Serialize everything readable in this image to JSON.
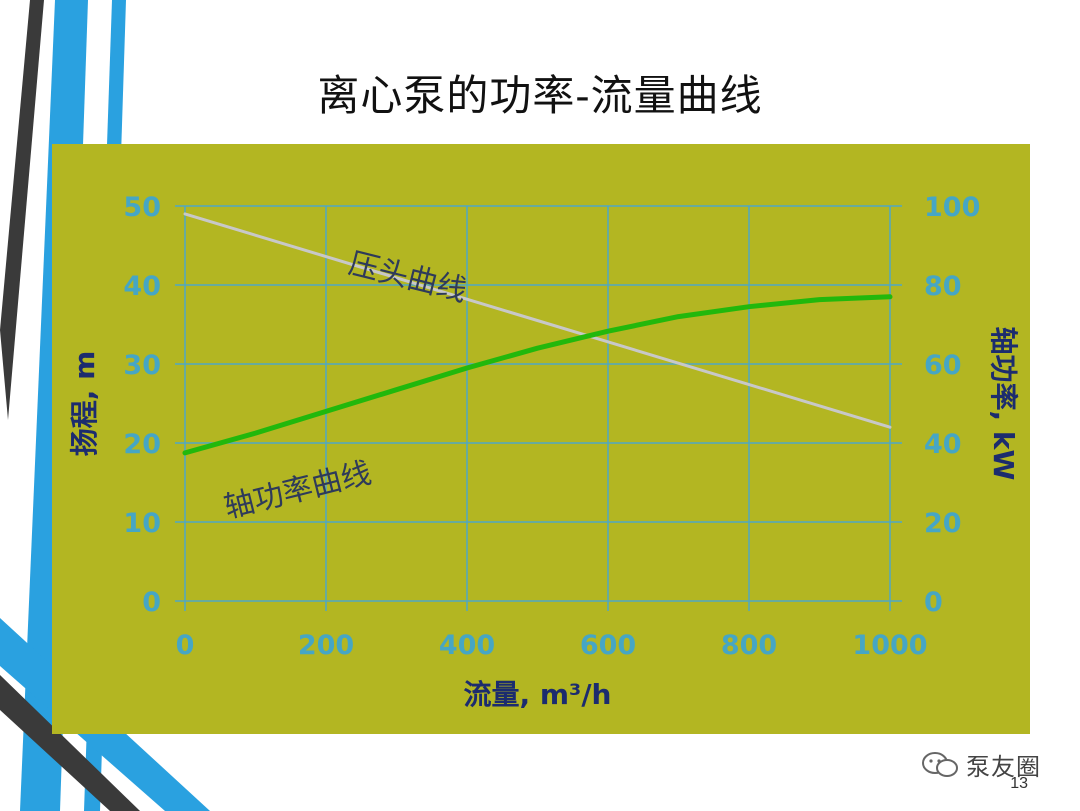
{
  "slide": {
    "title": "离心泵的功率-流量曲线",
    "page_number": "13",
    "watermark": "泵友圈"
  },
  "colors": {
    "panel": "#b3b622",
    "grid": "#4fa7c4",
    "tick_labels": "#46a6c4",
    "axis_titles": "#1c2c6e",
    "head_curve": "#c8c8c8",
    "power_curve": "#22b80c",
    "deco_blue": "#2aa1e0",
    "deco_dark": "#3a3a3a"
  },
  "chart_data": {
    "type": "line",
    "x_label": "流量, m³/h",
    "y_left_label": "扬程, m",
    "y_right_label": "轴功率, kW",
    "xlim": [
      0,
      1000
    ],
    "ylim_left": [
      0,
      50
    ],
    "ylim_right": [
      0,
      100
    ],
    "x_ticks": [
      "0",
      "200",
      "400",
      "600",
      "800",
      "1000"
    ],
    "y_left_ticks": [
      "0",
      "10",
      "20",
      "30",
      "40",
      "50"
    ],
    "y_right_ticks": [
      "0",
      "20",
      "40",
      "60",
      "80",
      "100"
    ],
    "grid": true,
    "series": [
      {
        "name": "压头曲线",
        "axis": "left",
        "color": "#c8c8c8",
        "x": [
          0,
          1000
        ],
        "y": [
          49,
          22
        ]
      },
      {
        "name": "轴功率曲线",
        "axis": "right",
        "color": "#22b80c",
        "x": [
          0,
          100,
          200,
          300,
          400,
          500,
          600,
          700,
          800,
          900,
          1000
        ],
        "y": [
          37.5,
          42.5,
          48,
          53.5,
          59,
          64,
          68.3,
          72,
          74.5,
          76.3,
          77
        ]
      }
    ]
  }
}
